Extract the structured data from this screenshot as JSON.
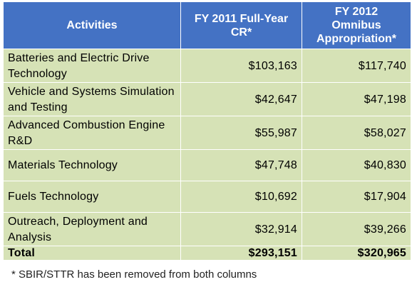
{
  "header": {
    "activities": "Activities",
    "fy2011": "FY 2011      Full-Year  CR*",
    "fy2012": "FY 2012 Omnibus Appropriation*"
  },
  "rows": [
    {
      "activity": "Batteries and Electric Drive Technology",
      "fy2011": "$103,163",
      "fy2012": "$117,740"
    },
    {
      "activity": "Vehicle and Systems Simulation and Testing",
      "fy2011": "$42,647",
      "fy2012": "$47,198"
    },
    {
      "activity": "Advanced Combustion Engine R&D",
      "fy2011": "$55,987",
      "fy2012": "$58,027"
    },
    {
      "activity": "Materials Technology",
      "fy2011": "$47,748",
      "fy2012": "$40,830"
    },
    {
      "activity": "Fuels Technology",
      "fy2011": "$10,692",
      "fy2012": "$17,904"
    },
    {
      "activity": "Outreach, Deployment and Analysis",
      "fy2011": "$32,914",
      "fy2012": "$39,266"
    }
  ],
  "total": {
    "label": "Total",
    "fy2011": "$293,151",
    "fy2012": "$320,965"
  },
  "footnote": "* SBIR/STTR has been removed from both columns",
  "colors": {
    "header_bg": "#4472c4",
    "body_bg": "#d6e2b6",
    "border": "#ffffff"
  }
}
